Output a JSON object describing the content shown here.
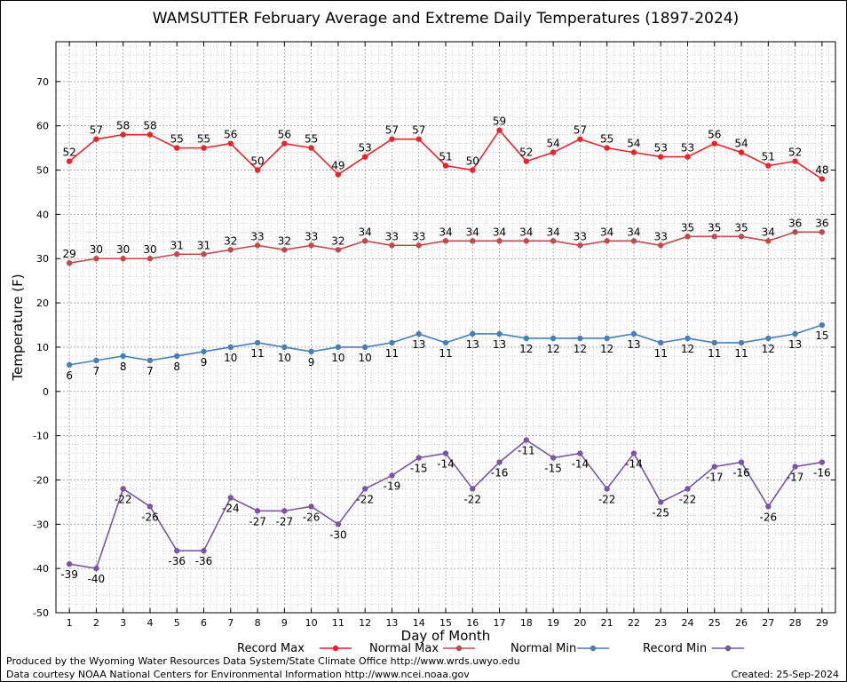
{
  "chart_data": {
    "type": "line",
    "title": "WAMSUTTER February Average and Extreme Daily Temperatures (1897-2024)",
    "xlabel": "Day of Month",
    "ylabel": "Temperature (F)",
    "x": [
      1,
      2,
      3,
      4,
      5,
      6,
      7,
      8,
      9,
      10,
      11,
      12,
      13,
      14,
      15,
      16,
      17,
      18,
      19,
      20,
      21,
      22,
      23,
      24,
      25,
      26,
      27,
      28,
      29
    ],
    "xlim": [
      0.5,
      29.5
    ],
    "ylim": [
      -50,
      79
    ],
    "yticks": [
      -50,
      -40,
      -30,
      -20,
      -10,
      0,
      10,
      20,
      30,
      40,
      50,
      60,
      70
    ],
    "grid": true,
    "legend_position": "bottom",
    "series": [
      {
        "name": "Record Max",
        "color": "#e8242a",
        "values": [
          52,
          57,
          58,
          58,
          55,
          55,
          56,
          50,
          56,
          55,
          49,
          53,
          57,
          57,
          51,
          50,
          59,
          52,
          54,
          57,
          55,
          54,
          53,
          53,
          56,
          54,
          51,
          52,
          48
        ],
        "label_pos": "above"
      },
      {
        "name": "Normal Max",
        "color": "#bf4a4d",
        "values": [
          29,
          30,
          30,
          30,
          31,
          31,
          32,
          33,
          32,
          33,
          32,
          34,
          33,
          33,
          34,
          34,
          34,
          34,
          34,
          33,
          34,
          34,
          33,
          35,
          35,
          35,
          34,
          36,
          36
        ],
        "label_pos": "above"
      },
      {
        "name": "Normal Min",
        "color": "#4a7fb5",
        "values": [
          6,
          7,
          8,
          7,
          8,
          9,
          10,
          11,
          10,
          9,
          10,
          10,
          11,
          13,
          11,
          13,
          13,
          12,
          12,
          12,
          12,
          13,
          11,
          12,
          11,
          11,
          12,
          13,
          15
        ],
        "label_pos": "below"
      },
      {
        "name": "Record Min",
        "color": "#7a55a3",
        "values": [
          -39,
          -40,
          -22,
          -26,
          -36,
          -36,
          -24,
          -27,
          -27,
          -26,
          -30,
          -22,
          -19,
          -15,
          -14,
          -22,
          -16,
          -11,
          -15,
          -14,
          -22,
          -14,
          -25,
          -22,
          -17,
          -16,
          -26,
          -17,
          -16
        ],
        "label_pos": "below"
      }
    ]
  },
  "footer": {
    "produced": "Produced by the Wyoming Water Resources Data System/State Climate Office http://www.wrds.uwyo.edu",
    "courtesy": "Data courtesy NOAA National Centers for Environmental Information http://www.ncei.noaa.gov",
    "created": "Created:  25-Sep-2024"
  }
}
